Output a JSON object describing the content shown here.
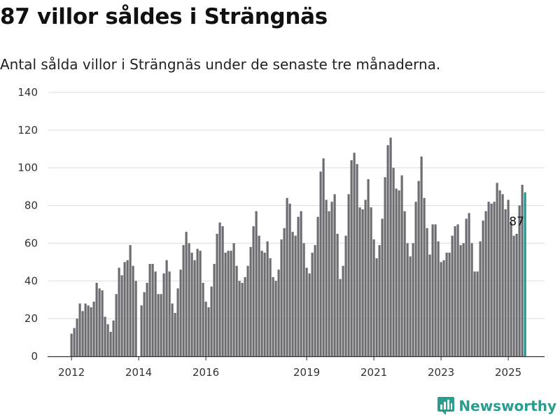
{
  "title": "87 villor såldes i Strängnäs",
  "subtitle": "Antal sålda villor i Strängnäs under de senaste tre månaderna.",
  "brand": {
    "name": "Newsworthy"
  },
  "colors": {
    "bar": "#6d6c72",
    "highlight": "#1a9a8f",
    "grid": "#dddddd",
    "axis": "#333333",
    "brand": "#2a9d8f"
  },
  "chart_data": {
    "type": "bar",
    "start_month": "2012-01",
    "y_ticks": [
      0,
      20,
      40,
      60,
      80,
      100,
      120,
      140
    ],
    "ylim": [
      0,
      140
    ],
    "x_tick_labels": [
      "2012",
      "2014",
      "2016",
      "2019",
      "2021",
      "2023",
      "2025"
    ],
    "x_tick_months": [
      "2012-01",
      "2014-01",
      "2016-01",
      "2019-01",
      "2021-01",
      "2023-01",
      "2025-01"
    ],
    "annotation": {
      "label": "87",
      "month": "2025-04"
    },
    "values": [
      12,
      15,
      20,
      28,
      24,
      28,
      27,
      26,
      29,
      39,
      36,
      35,
      21,
      17,
      13,
      19,
      33,
      47,
      43,
      50,
      51,
      59,
      48,
      40,
      null,
      27,
      34,
      39,
      49,
      49,
      45,
      33,
      33,
      44,
      51,
      45,
      28,
      23,
      36,
      46,
      59,
      66,
      60,
      55,
      51,
      57,
      56,
      39,
      29,
      26,
      37,
      49,
      65,
      71,
      69,
      55,
      56,
      56,
      60,
      48,
      40,
      39,
      42,
      48,
      58,
      69,
      77,
      64,
      56,
      55,
      61,
      52,
      42,
      40,
      46,
      62,
      68,
      84,
      81,
      66,
      64,
      74,
      77,
      60,
      47,
      44,
      55,
      59,
      74,
      98,
      105,
      83,
      77,
      82,
      86,
      65,
      41,
      48,
      64,
      86,
      104,
      108,
      102,
      79,
      78,
      83,
      94,
      79,
      62,
      52,
      59,
      73,
      95,
      112,
      116,
      100,
      89,
      88,
      96,
      77,
      60,
      53,
      60,
      82,
      93,
      106,
      84,
      68,
      54,
      70,
      70,
      61,
      50,
      51,
      55,
      55,
      64,
      69,
      70,
      59,
      60,
      73,
      76,
      60,
      45,
      45,
      61,
      72,
      77,
      82,
      81,
      82,
      92,
      88,
      86,
      78,
      83,
      71,
      64,
      65,
      80,
      91,
      87
    ]
  }
}
